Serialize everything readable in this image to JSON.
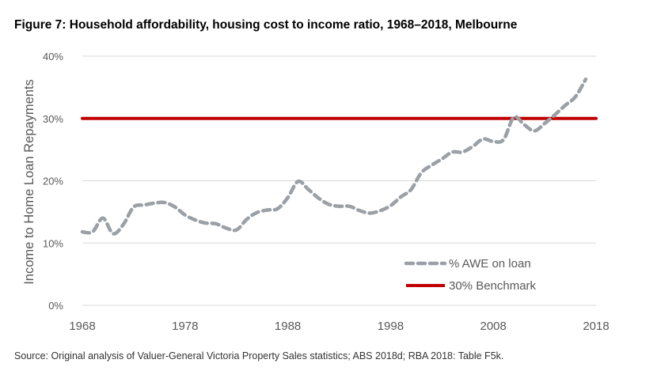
{
  "chart_data": {
    "type": "line",
    "title": "Figure 7: Household affordability, housing cost to income ratio, 1968–2018, Melbourne",
    "ylabel": "Income to Home Loan Repayments",
    "xlabel": "",
    "xlim": [
      1968,
      2018
    ],
    "ylim": [
      0,
      40
    ],
    "x_ticks": [
      "1968",
      "1978",
      "1988",
      "1998",
      "2008",
      "2018"
    ],
    "y_ticks": [
      "0%",
      "10%",
      "20%",
      "30%",
      "40%"
    ],
    "grid": "horizontal",
    "legend_position": "bottom-right",
    "series": [
      {
        "name": "% AWE on loan",
        "color": "#9aa0a6",
        "style": "dashed",
        "x": [
          1968,
          1969,
          1970,
          1971,
          1972,
          1973,
          1974,
          1975,
          1976,
          1977,
          1978,
          1979,
          1980,
          1981,
          1982,
          1983,
          1984,
          1985,
          1986,
          1987,
          1988,
          1989,
          1990,
          1991,
          1992,
          1993,
          1994,
          1995,
          1996,
          1997,
          1998,
          1999,
          2000,
          2001,
          2002,
          2003,
          2004,
          2005,
          2006,
          2007,
          2008,
          2009,
          2010,
          2011,
          2012,
          2013,
          2014,
          2015,
          2016,
          2017
        ],
        "values": [
          11.8,
          11.8,
          14.0,
          11.5,
          13.0,
          15.8,
          16.1,
          16.4,
          16.5,
          15.8,
          14.5,
          13.7,
          13.2,
          13.1,
          12.4,
          12.1,
          13.8,
          14.9,
          15.3,
          15.5,
          17.3,
          19.9,
          18.6,
          17.2,
          16.2,
          15.9,
          15.9,
          15.2,
          14.8,
          15.2,
          16.0,
          17.4,
          18.6,
          21.3,
          22.5,
          23.5,
          24.6,
          24.6,
          25.5,
          26.7,
          26.3,
          26.6,
          30.2,
          29.0,
          28.0,
          29.2,
          30.6,
          32.1,
          33.5,
          36.3
        ]
      },
      {
        "name": "30% Benchmark",
        "color": "#c00000",
        "style": "solid",
        "x": [
          1968,
          2018
        ],
        "values": [
          30,
          30
        ]
      }
    ]
  },
  "source": "Source: Original analysis of Valuer-General Victoria Property Sales statistics; ABS 2018d; RBA 2018: Table F5k."
}
